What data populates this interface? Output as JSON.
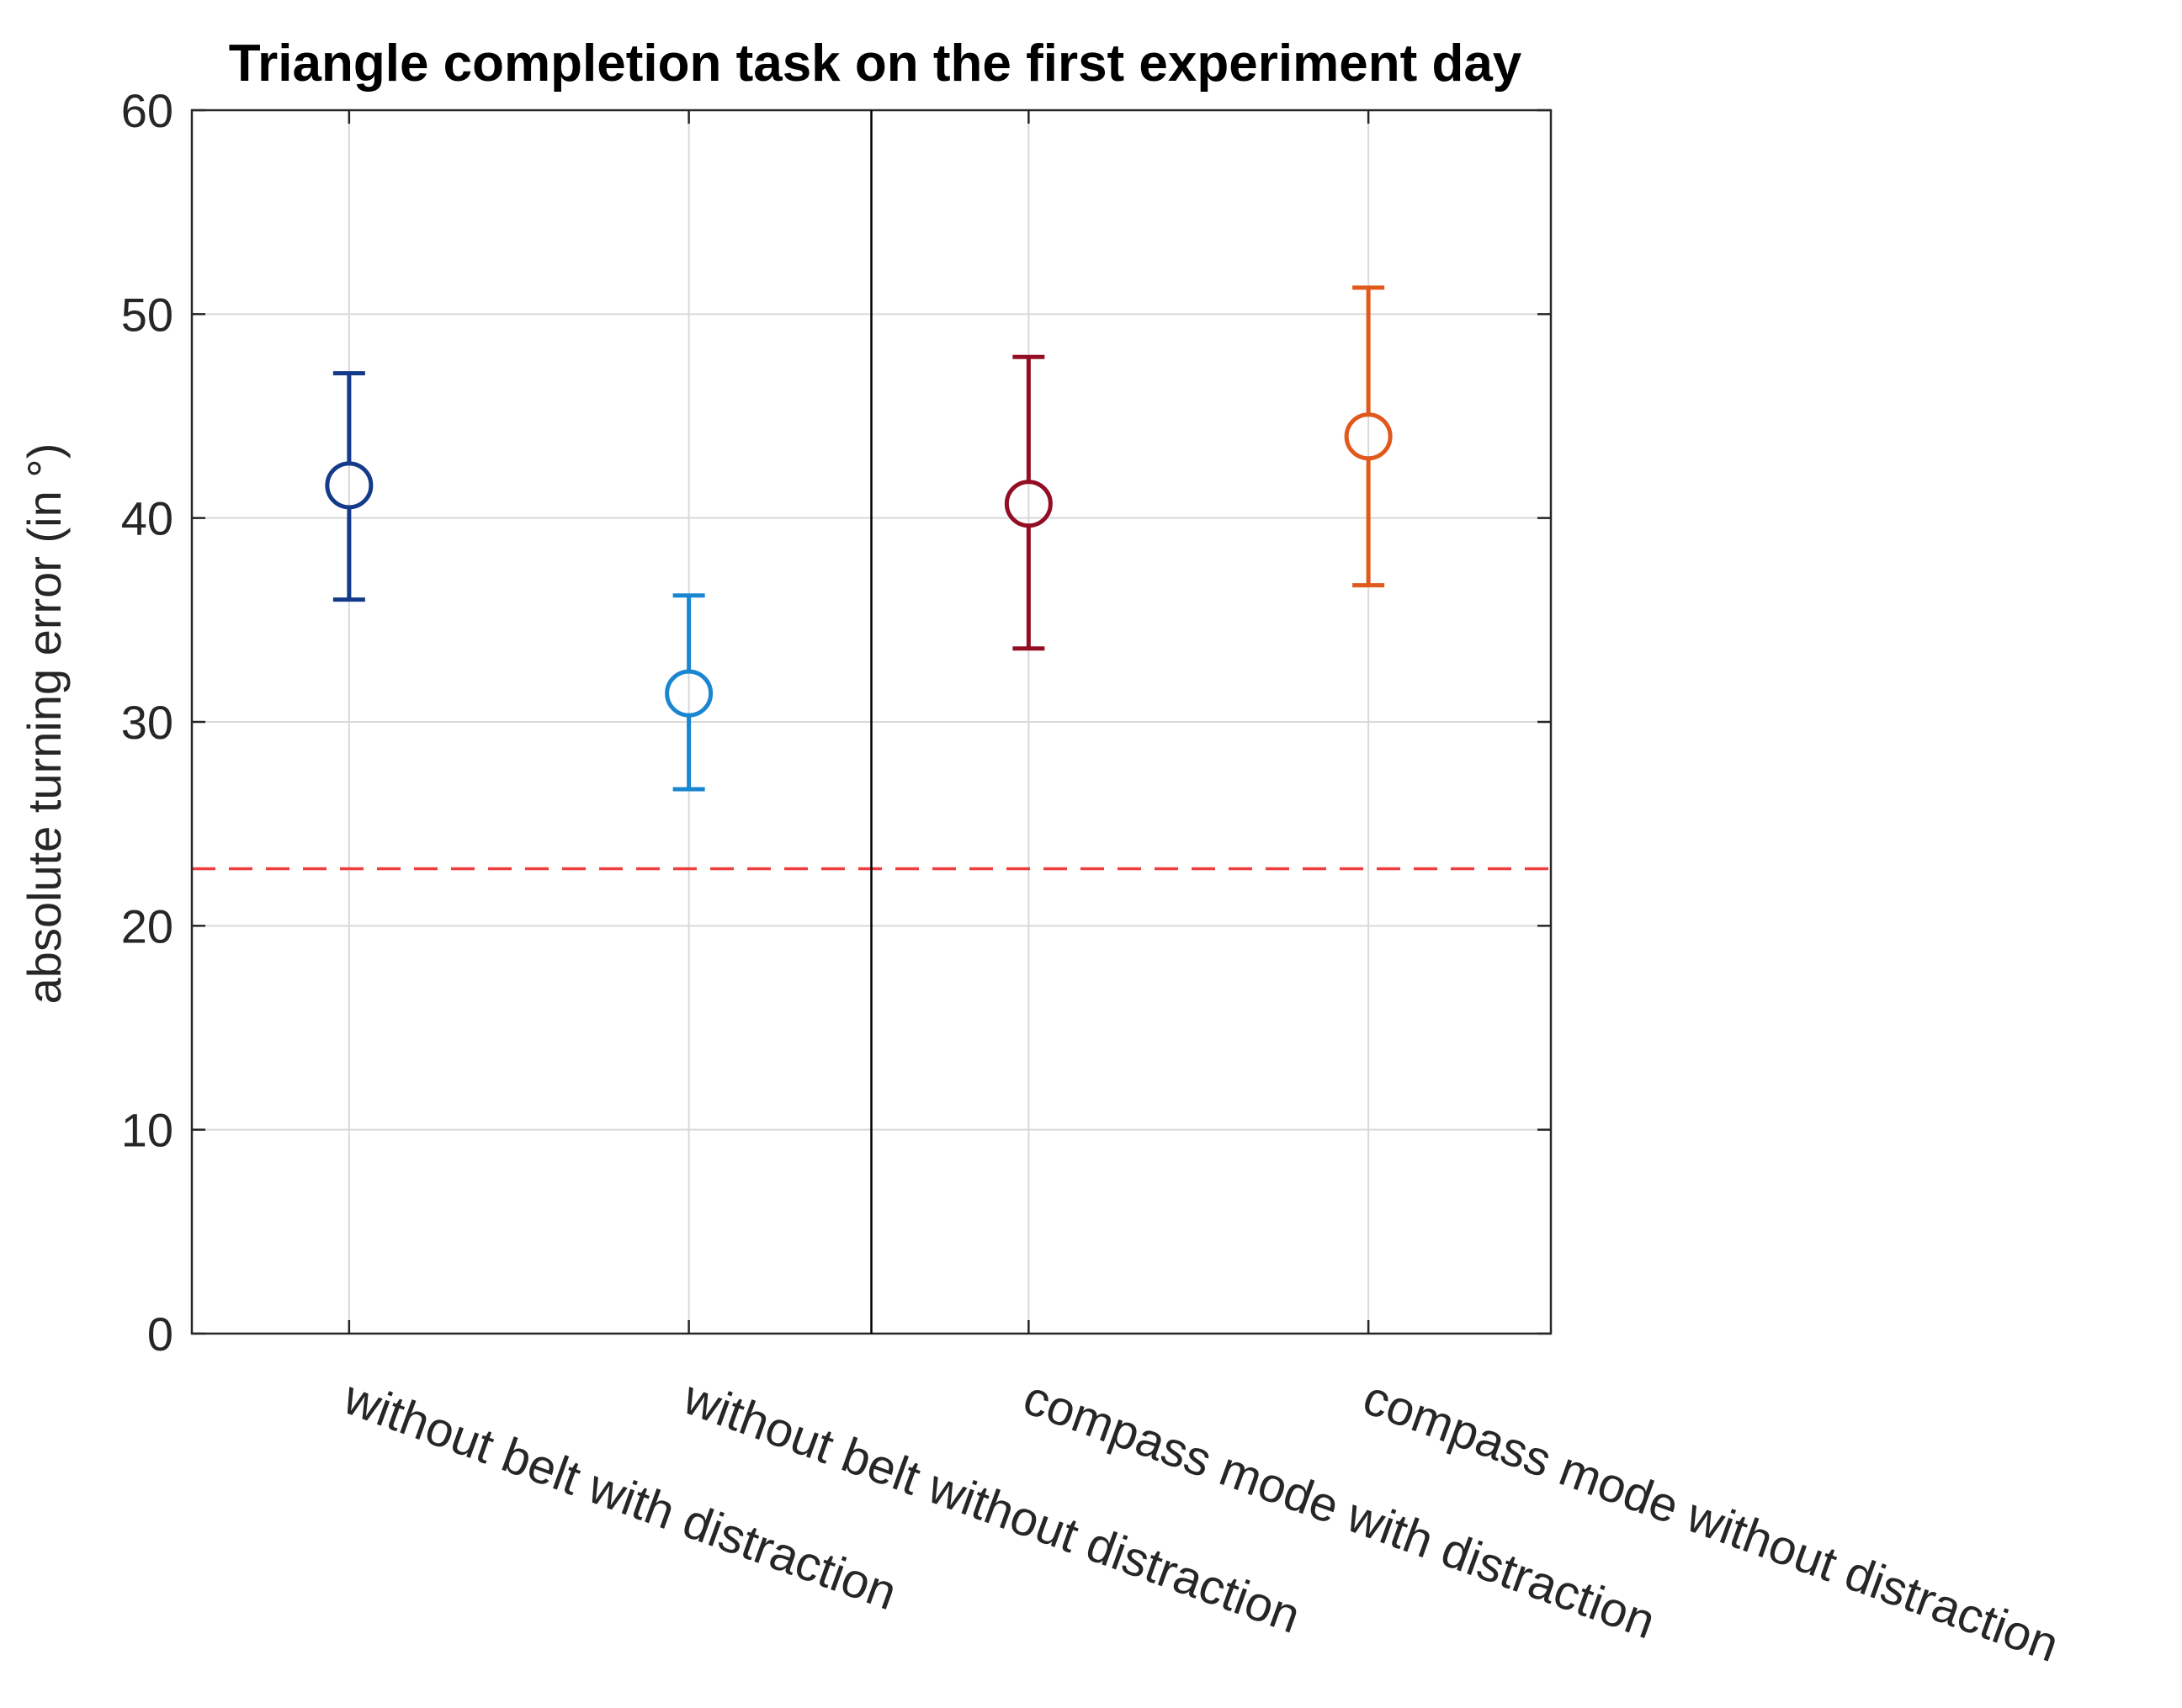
{
  "chart_data": {
    "type": "errorbar",
    "title": "Triangle completion task on the first experiment day",
    "xlabel": "",
    "ylabel": "absolute turning error (in °)",
    "ylim": [
      0,
      60
    ],
    "yticks": [
      0,
      10,
      20,
      30,
      40,
      50,
      60
    ],
    "grid": true,
    "categories": [
      "without belt with distraction",
      "without belt without distraction",
      "compass mode with distraction",
      "compass mode without distraction"
    ],
    "points": [
      {
        "category": "without belt with distraction",
        "mean": 41.6,
        "lower": 36.0,
        "upper": 47.1,
        "color": "#143a8a"
      },
      {
        "category": "without belt without distraction",
        "mean": 31.4,
        "lower": 26.7,
        "upper": 36.2,
        "color": "#1a86d0"
      },
      {
        "category": "compass mode with distraction",
        "mean": 40.7,
        "lower": 33.6,
        "upper": 47.9,
        "color": "#930e24"
      },
      {
        "category": "compass mode without distraction",
        "mean": 44.0,
        "lower": 36.7,
        "upper": 51.3,
        "color": "#e05a1e"
      }
    ],
    "reference_line": {
      "y": 22.8,
      "color": "#f03c3c",
      "style": "dashed"
    },
    "group_divider_after_category": 2
  }
}
